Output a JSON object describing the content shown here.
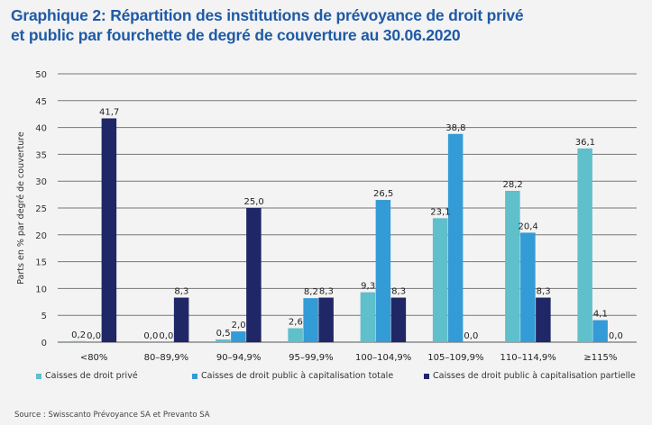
{
  "title_line1": "Graphique 2: Répartition des institutions de prévoyance de droit privé",
  "title_line2": "et public par fourchette de degré de couverture au 30.06.2020",
  "source": "Source : Swisscanto Prévoyance SA et Prevanto SA",
  "chart_data": {
    "type": "bar",
    "title": "Graphique 2: Répartition des institutions de prévoyance de droit privé et public par fourchette de degré de couverture au 30.06.2020",
    "xlabel": "",
    "ylabel": "Parts en % par degré de couverture",
    "ylim": [
      0,
      50
    ],
    "yticks": [
      0,
      5,
      10,
      15,
      20,
      25,
      30,
      35,
      40,
      45,
      50
    ],
    "grid": true,
    "legend_position": "bottom",
    "categories": [
      "<80%",
      "80–89,9%",
      "90–94,9%",
      "95–99,9%",
      "100–104,9%",
      "105–109,9%",
      "110–114,9%",
      "≥115%"
    ],
    "series": [
      {
        "name": "Caisses de droit privé",
        "color": "#5fbfcb",
        "values": [
          0.2,
          0.0,
          0.5,
          2.6,
          9.3,
          23.1,
          28.2,
          36.1
        ],
        "labels": [
          "0,2",
          "0,0",
          "0,5",
          "2,6",
          "9,3",
          "23,1",
          "28,2",
          "36,1"
        ]
      },
      {
        "name": "Caisses de droit public à capitalisation totale",
        "color": "#339bd6",
        "values": [
          0.0,
          0.0,
          2.0,
          8.2,
          26.5,
          38.8,
          20.4,
          4.1
        ],
        "labels": [
          "0,0",
          "0,0",
          "2,0",
          "8,2",
          "26,5",
          "38,8",
          "20,4",
          "4,1"
        ]
      },
      {
        "name": "Caisses de droit public à capitalisation partielle",
        "color": "#1f2766",
        "values": [
          41.7,
          8.3,
          25.0,
          8.3,
          8.3,
          0.0,
          8.3,
          0.0
        ],
        "labels": [
          "41,7",
          "8,3",
          "25,0",
          "8,3",
          "8,3",
          "0,0",
          "8,3",
          "0,0"
        ]
      }
    ]
  }
}
